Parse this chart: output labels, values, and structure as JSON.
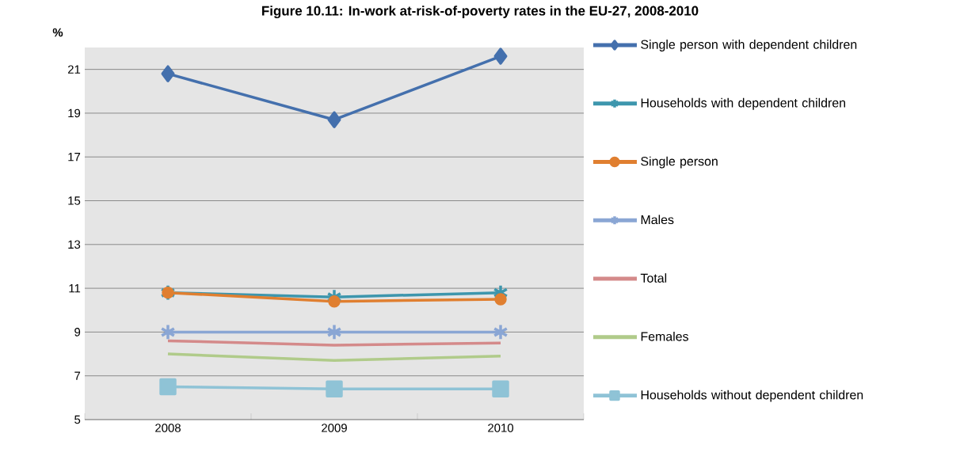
{
  "chart_data": {
    "type": "line",
    "title": "Figure 10.11: In-work at-risk-of-poverty rates in the EU-27, 2008-2010",
    "ylabel": "%",
    "categories": [
      "2008",
      "2009",
      "2010"
    ],
    "series": [
      {
        "name": "Single person with dependent children",
        "color": "#4470ad",
        "marker": "diamond",
        "values": [
          20.8,
          18.7,
          21.6
        ]
      },
      {
        "name": "Households with dependent children",
        "color": "#3d96ad",
        "marker": "cross",
        "values": [
          10.8,
          10.6,
          10.8
        ]
      },
      {
        "name": "Single person",
        "color": "#e07f30",
        "marker": "circle",
        "values": [
          10.8,
          10.4,
          10.5
        ]
      },
      {
        "name": "Males",
        "color": "#8aa6d4",
        "marker": "cross",
        "values": [
          9.0,
          9.0,
          9.0
        ]
      },
      {
        "name": "Total",
        "color": "#d48a8a",
        "marker": "none",
        "values": [
          8.6,
          8.4,
          8.5
        ]
      },
      {
        "name": "Females",
        "color": "#b0cb8a",
        "marker": "none",
        "values": [
          8.0,
          7.7,
          7.9
        ]
      },
      {
        "name": "Households without dependent children",
        "color": "#8fc3d6",
        "marker": "square",
        "values": [
          6.5,
          6.4,
          6.4
        ]
      }
    ],
    "ylim": [
      5,
      22
    ],
    "yticks": [
      5,
      7,
      9,
      11,
      13,
      15,
      17,
      19,
      21
    ],
    "grid": "y",
    "legend": "right"
  }
}
